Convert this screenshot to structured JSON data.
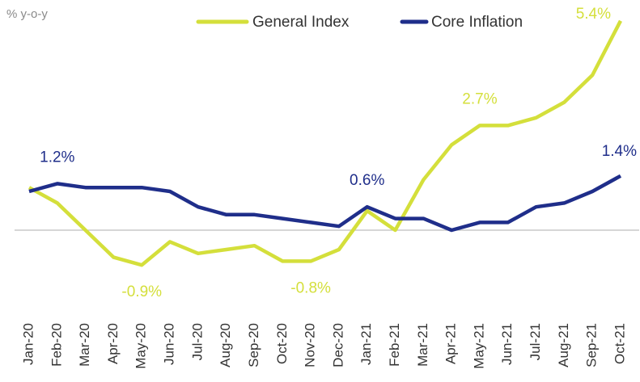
{
  "chart_data": {
    "type": "line",
    "y_label": "% y-o-y",
    "legend": "top",
    "categories": [
      "Jan-20",
      "Feb-20",
      "Mar-20",
      "Apr-20",
      "May-20",
      "Jun-20",
      "Jul-20",
      "Aug-20",
      "Sep-20",
      "Oct-20",
      "Nov-20",
      "Dec-20",
      "Jan-21",
      "Feb-21",
      "Mar-21",
      "Apr-21",
      "May-21",
      "Jun-21",
      "Jul-21",
      "Aug-21",
      "Sep-21",
      "Oct-21"
    ],
    "ylim": [
      -2,
      6
    ],
    "series": [
      {
        "name": "General Index",
        "color": "#d4df3b",
        "values": [
          1.1,
          0.7,
          0.0,
          -0.7,
          -0.9,
          -0.3,
          -0.6,
          -0.5,
          -0.4,
          -0.8,
          -0.8,
          -0.5,
          0.5,
          0.0,
          1.3,
          2.2,
          2.7,
          2.7,
          2.9,
          3.3,
          4.0,
          5.4
        ],
        "value_labels": [
          null,
          null,
          null,
          null,
          "-0.9%",
          null,
          null,
          null,
          null,
          null,
          "-0.8%",
          null,
          null,
          null,
          null,
          null,
          "2.7%",
          null,
          null,
          null,
          null,
          "5.4%"
        ]
      },
      {
        "name": "Core Inflation",
        "color": "#1f2e8a",
        "values": [
          1.0,
          1.2,
          1.1,
          1.1,
          1.1,
          1.0,
          0.6,
          0.4,
          0.4,
          0.3,
          0.2,
          0.1,
          0.6,
          0.3,
          0.3,
          0.0,
          0.2,
          0.2,
          0.6,
          0.7,
          1.0,
          1.4
        ],
        "value_labels": [
          null,
          "1.2%",
          null,
          null,
          null,
          null,
          null,
          null,
          null,
          null,
          null,
          null,
          "0.6%",
          null,
          null,
          null,
          null,
          null,
          null,
          null,
          null,
          "1.4%"
        ]
      }
    ]
  }
}
